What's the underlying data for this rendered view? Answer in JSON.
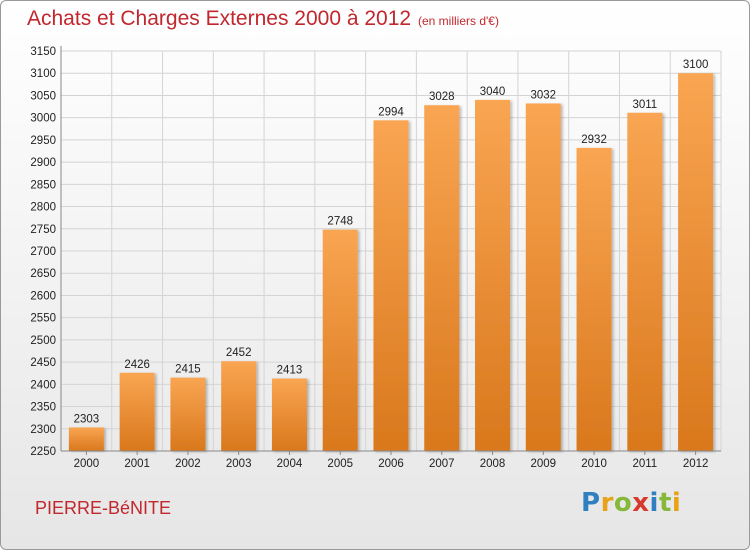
{
  "header": {
    "title": "Achats et Charges Externes 2000 à 2012",
    "subtitle": "(en milliers d'€)"
  },
  "footer": {
    "town": "PIERRE-BéNITE",
    "logo_letters": [
      {
        "char": "P",
        "color": "#2f7fc1"
      },
      {
        "char": "r",
        "color": "#e8a21a"
      },
      {
        "char": "o",
        "color": "#86b83a"
      },
      {
        "char": "x",
        "color": "#d63a2c"
      },
      {
        "char": "i",
        "color": "#2f7fc1"
      },
      {
        "char": "t",
        "color": "#86b83a"
      },
      {
        "char": "i",
        "color": "#e8a21a"
      }
    ]
  },
  "chart_data": {
    "type": "bar",
    "title": "Achats et Charges Externes 2000 à 2012",
    "subtitle": "(en milliers d'€)",
    "categories": [
      "2000",
      "2001",
      "2002",
      "2003",
      "2004",
      "2005",
      "2006",
      "2007",
      "2008",
      "2009",
      "2010",
      "2011",
      "2012"
    ],
    "values": [
      2303,
      2426,
      2415,
      2452,
      2413,
      2748,
      2994,
      3028,
      3040,
      3032,
      2932,
      3011,
      3100
    ],
    "ylim": [
      2250,
      3150
    ],
    "yticks": [
      2250,
      2300,
      2350,
      2400,
      2450,
      2500,
      2550,
      2600,
      2650,
      2700,
      2750,
      2800,
      2850,
      2900,
      2950,
      3000,
      3050,
      3100,
      3150
    ],
    "grid": true,
    "colors": {
      "bar_top": "#f9a552",
      "bar_bottom": "#d9781c",
      "grid": "#d4d4d4",
      "axis": "#888888"
    }
  }
}
